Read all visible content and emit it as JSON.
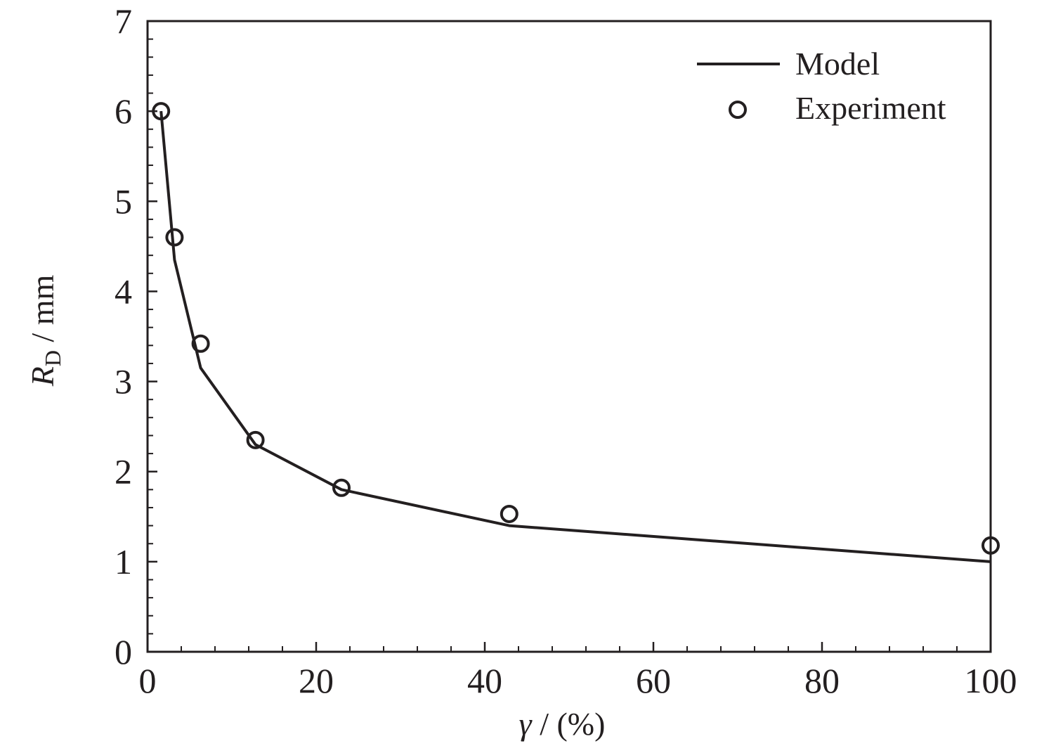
{
  "chart_data": {
    "type": "line",
    "x_axis": {
      "label_symbol": "γ",
      "label_rest": " / (%)",
      "range": [
        0,
        100
      ],
      "ticks": [
        "0",
        "20",
        "40",
        "60",
        "80",
        "100"
      ],
      "tick_values": [
        0,
        20,
        40,
        60,
        80,
        100
      ],
      "minor_step": 4
    },
    "y_axis": {
      "label_symbol": "R",
      "label_sub": "D",
      "label_rest": " / mm",
      "range": [
        0,
        7
      ],
      "ticks": [
        "0",
        "1",
        "2",
        "3",
        "4",
        "5",
        "6",
        "7"
      ],
      "tick_values": [
        0,
        1,
        2,
        3,
        4,
        5,
        6,
        7
      ],
      "minor_step": 0.2
    },
    "grid": false,
    "legend_position": "top-right",
    "series": [
      {
        "name": "Model",
        "style": "line",
        "x": [
          1.6,
          3.2,
          6.3,
          12.8,
          23.0,
          42.9,
          100.0
        ],
        "y": [
          6.0,
          4.35,
          3.15,
          2.3,
          1.8,
          1.4,
          1.0
        ]
      },
      {
        "name": "Experiment",
        "style": "circle-marker",
        "x": [
          1.6,
          3.2,
          6.3,
          12.8,
          23.0,
          42.9,
          100.0
        ],
        "y": [
          6.0,
          4.6,
          3.42,
          2.35,
          1.82,
          1.53,
          1.18
        ]
      }
    ],
    "colors": {
      "ink": "#231f20",
      "background": "#ffffff"
    }
  }
}
